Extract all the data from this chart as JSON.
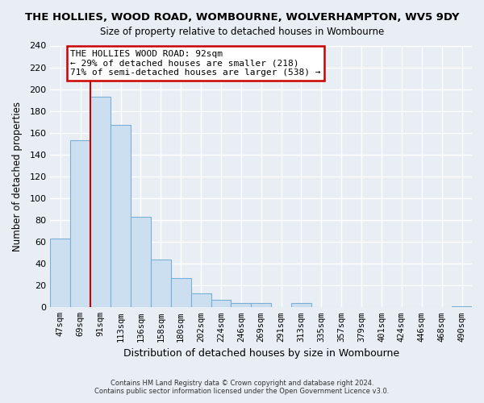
{
  "title": "THE HOLLIES, WOOD ROAD, WOMBOURNE, WOLVERHAMPTON, WV5 9DY",
  "subtitle": "Size of property relative to detached houses in Wombourne",
  "xlabel": "Distribution of detached houses by size in Wombourne",
  "ylabel": "Number of detached properties",
  "bar_labels": [
    "47sqm",
    "69sqm",
    "91sqm",
    "113sqm",
    "136sqm",
    "158sqm",
    "180sqm",
    "202sqm",
    "224sqm",
    "246sqm",
    "269sqm",
    "291sqm",
    "313sqm",
    "335sqm",
    "357sqm",
    "379sqm",
    "401sqm",
    "424sqm",
    "446sqm",
    "468sqm",
    "490sqm"
  ],
  "bar_values": [
    63,
    153,
    193,
    167,
    83,
    44,
    27,
    13,
    7,
    4,
    4,
    0,
    4,
    0,
    0,
    0,
    0,
    0,
    0,
    0,
    1
  ],
  "bar_color": "#ccdff0",
  "bar_edge_color": "#7ab0d4",
  "vline_x_index": 2,
  "vline_color": "#cc0000",
  "annotation_title": "THE HOLLIES WOOD ROAD: 92sqm",
  "annotation_line1": "← 29% of detached houses are smaller (218)",
  "annotation_line2": "71% of semi-detached houses are larger (538) →",
  "annotation_box_color": "#ffffff",
  "annotation_box_edge": "#cc0000",
  "ylim": [
    0,
    240
  ],
  "yticks": [
    0,
    20,
    40,
    60,
    80,
    100,
    120,
    140,
    160,
    180,
    200,
    220,
    240
  ],
  "footer1": "Contains HM Land Registry data © Crown copyright and database right 2024.",
  "footer2": "Contains public sector information licensed under the Open Government Licence v3.0.",
  "bg_color": "#e8eef4",
  "plot_bg_color": "#e8eef4",
  "grid_color": "#ffffff"
}
